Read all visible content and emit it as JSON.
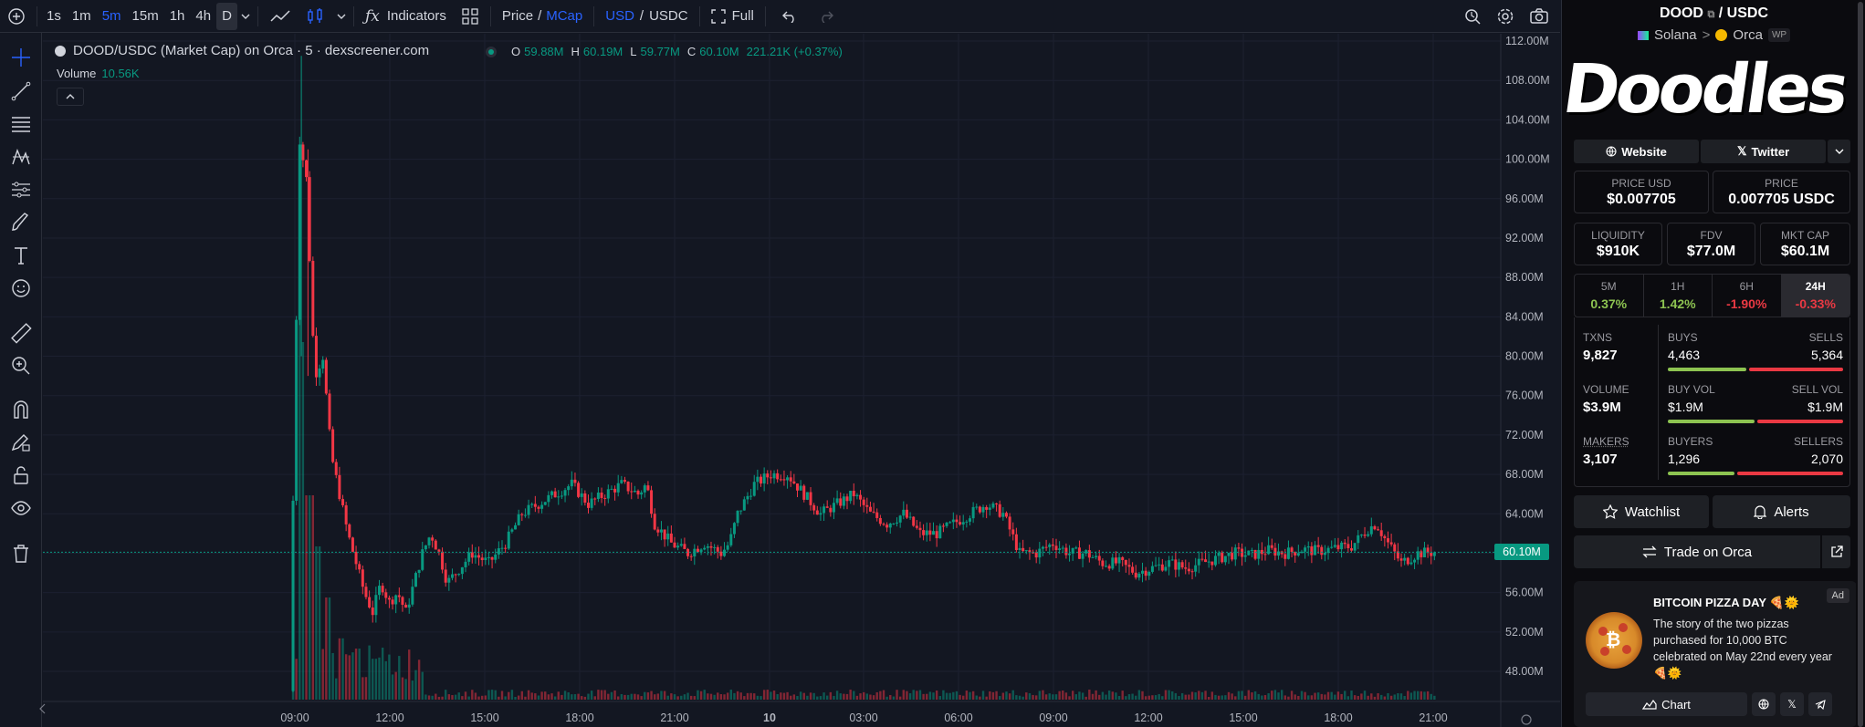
{
  "toolbar": {
    "timeframes": [
      "1s",
      "1m",
      "5m",
      "15m",
      "1h",
      "4h",
      "D"
    ],
    "indicators_label": "Indicators",
    "price_label": "Price",
    "slash": "/",
    "mcap_label": "MCap",
    "usd_label": "USD",
    "usdc_label": "USDC",
    "full_label": "Full"
  },
  "chart_header": {
    "title": "DOOD/USDC (Market Cap) on Orca · 5 · dexscreener.com",
    "o_label": "O",
    "o": "59.88M",
    "h_label": "H",
    "h": "60.19M",
    "l_label": "L",
    "l": "59.77M",
    "c_label": "C",
    "c": "60.10M",
    "change": "221.21K (+0.37%)",
    "volume_label": "Volume",
    "volume_value": "10.56K"
  },
  "chart_data": {
    "type": "candlestick",
    "y_axis": {
      "ticks": [
        "112.00M",
        "108.00M",
        "104.00M",
        "100.00M",
        "96.00M",
        "92.00M",
        "88.00M",
        "84.00M",
        "80.00M",
        "76.00M",
        "72.00M",
        "68.00M",
        "64.00M",
        "60.00M",
        "56.00M",
        "52.00M",
        "48.00M"
      ],
      "range": [
        46,
        112
      ],
      "unit": "M"
    },
    "x_axis": {
      "ticks": [
        "09:00",
        "12:00",
        "15:00",
        "18:00",
        "21:00",
        "10",
        "03:00",
        "06:00",
        "09:00",
        "12:00",
        "15:00",
        "18:00",
        "21:00"
      ]
    },
    "last_price_label": "60.10M",
    "last_price": 60.1,
    "colors": {
      "up": "#089981",
      "down": "#f23645"
    },
    "series_points": [
      [
        0,
        46
      ],
      [
        0.3,
        75
      ],
      [
        0.6,
        102
      ],
      [
        1,
        98
      ],
      [
        1.5,
        78
      ],
      [
        2,
        80
      ],
      [
        2.5,
        70
      ],
      [
        3,
        66
      ],
      [
        3.5,
        62
      ],
      [
        4,
        59
      ],
      [
        4.5,
        56
      ],
      [
        5,
        54
      ],
      [
        5.5,
        57
      ],
      [
        6,
        55
      ],
      [
        6.5,
        56
      ],
      [
        7,
        54
      ],
      [
        7.5,
        57
      ],
      [
        8,
        60
      ],
      [
        8.5,
        62
      ],
      [
        9,
        60
      ],
      [
        9.5,
        57
      ],
      [
        10,
        58
      ],
      [
        11,
        60
      ],
      [
        12,
        59
      ],
      [
        13,
        61
      ],
      [
        14,
        64
      ],
      [
        15,
        65
      ],
      [
        16,
        66
      ],
      [
        17,
        67
      ],
      [
        18,
        65
      ],
      [
        19,
        66
      ],
      [
        20,
        67
      ],
      [
        21,
        66
      ],
      [
        21.5,
        67
      ],
      [
        22,
        63
      ],
      [
        23,
        61
      ],
      [
        24,
        60
      ],
      [
        25,
        61
      ],
      [
        26,
        60
      ],
      [
        26.5,
        61
      ],
      [
        27,
        64
      ],
      [
        28,
        67
      ],
      [
        29,
        68
      ],
      [
        30,
        68
      ],
      [
        31,
        66
      ],
      [
        32,
        64
      ],
      [
        33,
        65
      ],
      [
        34,
        66
      ],
      [
        35,
        64
      ],
      [
        36,
        63
      ],
      [
        37,
        64
      ],
      [
        38,
        62
      ],
      [
        39,
        62
      ],
      [
        40,
        63
      ],
      [
        41,
        64
      ],
      [
        42,
        65
      ],
      [
        43,
        64
      ],
      [
        44,
        60
      ],
      [
        45,
        60
      ],
      [
        46,
        61
      ],
      [
        47,
        60
      ],
      [
        48,
        60
      ],
      [
        49,
        59
      ],
      [
        50,
        59
      ],
      [
        51,
        58
      ],
      [
        52,
        58.5
      ],
      [
        53,
        59
      ],
      [
        54,
        58.5
      ],
      [
        55,
        59
      ],
      [
        56,
        59.5
      ],
      [
        57,
        60
      ],
      [
        58,
        59.8
      ],
      [
        59,
        60.3
      ],
      [
        60,
        60
      ],
      [
        61,
        60.4
      ],
      [
        62,
        60.2
      ],
      [
        63,
        60.5
      ],
      [
        64,
        60.7
      ],
      [
        65,
        62.5
      ],
      [
        65.5,
        63
      ],
      [
        66,
        61.5
      ],
      [
        67,
        59
      ],
      [
        68,
        60
      ],
      [
        69,
        60.1
      ]
    ],
    "volume_spikes": [
      [
        0.4,
        1
      ],
      [
        0.6,
        0.7
      ],
      [
        1.0,
        0.4
      ],
      [
        1.5,
        0.3
      ],
      [
        2,
        0.2
      ],
      [
        3,
        0.12
      ],
      [
        4,
        0.1
      ],
      [
        5,
        0.08
      ]
    ]
  },
  "panel": {
    "base_token": "DOOD",
    "sep": "/",
    "quote_token": "USDC",
    "chain": "Solana",
    "chevron": ">",
    "dex": "Orca",
    "wp_label": "WP",
    "banner_text": "Doodles",
    "website_label": "Website",
    "twitter_label": "Twitter",
    "price_usd_label": "PRICE USD",
    "price_usd": "$0.007705",
    "price_label": "PRICE",
    "price_quote": "0.007705 USDC",
    "liquidity_label": "LIQUIDITY",
    "liquidity": "$910K",
    "fdv_label": "FDV",
    "fdv": "$77.0M",
    "mktcap_label": "MKT CAP",
    "mktcap": "$60.1M",
    "changes": [
      {
        "label": "5M",
        "value": "0.37%",
        "color": "#8dc351"
      },
      {
        "label": "1H",
        "value": "1.42%",
        "color": "#8dc351"
      },
      {
        "label": "6H",
        "value": "-1.90%",
        "color": "#ea3943"
      },
      {
        "label": "24H",
        "value": "-0.33%",
        "color": "#ea3943"
      }
    ],
    "txns_label": "TXNS",
    "txns": "9,827",
    "buys_label": "BUYS",
    "buys": "4,463",
    "sells_label": "SELLS",
    "sells": "5,364",
    "buys_share": 0.454,
    "volume_label": "VOLUME",
    "volume": "$3.9M",
    "buy_vol_label": "BUY VOL",
    "buy_vol": "$1.9M",
    "sell_vol_label": "SELL VOL",
    "sell_vol": "$1.9M",
    "buy_vol_share": 0.5,
    "makers_label": "MAKERS",
    "makers": "3,107",
    "buyers_label": "BUYERS",
    "buyers": "1,296",
    "sellers_label": "SELLERS",
    "sellers": "2,070",
    "buyers_share": 0.385,
    "watchlist_label": "Watchlist",
    "alerts_label": "Alerts",
    "trade_label": "Trade on Orca",
    "ad": {
      "tag": "Ad",
      "title": "BITCOIN PIZZA DAY 🍕🌞",
      "description": "The story of the two pizzas purchased for 10,000 BTC celebrated on May 22nd every year 🍕🌞",
      "chart_button": "Chart"
    }
  }
}
